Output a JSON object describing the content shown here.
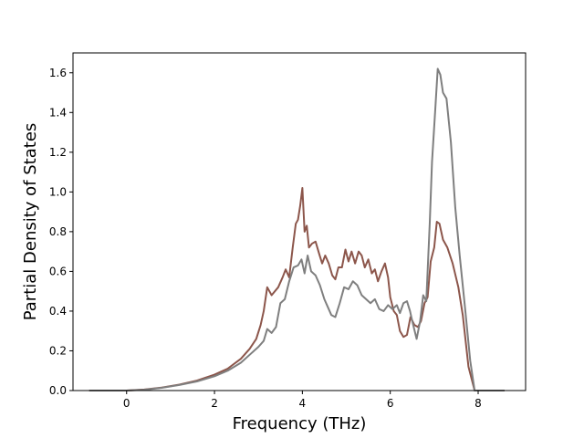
{
  "chart_data": {
    "type": "line",
    "title": "",
    "xlabel": "Frequency (THz)",
    "ylabel": "Partial Density of States",
    "xlim": [
      -1.22,
      9.08
    ],
    "ylim": [
      0.0,
      1.7
    ],
    "xticks": [
      0,
      2,
      4,
      6,
      8
    ],
    "yticks": [
      0.0,
      0.2,
      0.4,
      0.6,
      0.8,
      1.0,
      1.2,
      1.4,
      1.6
    ],
    "xtick_labels": [
      "0",
      "2",
      "4",
      "6",
      "8"
    ],
    "ytick_labels": [
      "0.0",
      "0.2",
      "0.4",
      "0.6",
      "0.8",
      "1.0",
      "1.2",
      "1.4",
      "1.6"
    ],
    "grid": false,
    "legend": false,
    "series": [
      {
        "color": "#8c564b",
        "points": [
          [
            -0.85,
            0.0
          ],
          [
            0.0,
            0.0
          ],
          [
            0.4,
            0.005
          ],
          [
            0.8,
            0.015
          ],
          [
            1.2,
            0.03
          ],
          [
            1.6,
            0.05
          ],
          [
            2.0,
            0.08
          ],
          [
            2.3,
            0.11
          ],
          [
            2.6,
            0.16
          ],
          [
            2.8,
            0.21
          ],
          [
            2.95,
            0.26
          ],
          [
            3.05,
            0.33
          ],
          [
            3.12,
            0.4
          ],
          [
            3.2,
            0.52
          ],
          [
            3.3,
            0.48
          ],
          [
            3.45,
            0.52
          ],
          [
            3.55,
            0.57
          ],
          [
            3.62,
            0.61
          ],
          [
            3.7,
            0.57
          ],
          [
            3.78,
            0.72
          ],
          [
            3.85,
            0.84
          ],
          [
            3.9,
            0.86
          ],
          [
            3.95,
            0.93
          ],
          [
            4.0,
            1.02
          ],
          [
            4.05,
            0.8
          ],
          [
            4.1,
            0.83
          ],
          [
            4.15,
            0.72
          ],
          [
            4.22,
            0.74
          ],
          [
            4.3,
            0.75
          ],
          [
            4.38,
            0.69
          ],
          [
            4.45,
            0.64
          ],
          [
            4.52,
            0.68
          ],
          [
            4.6,
            0.64
          ],
          [
            4.68,
            0.58
          ],
          [
            4.75,
            0.56
          ],
          [
            4.82,
            0.62
          ],
          [
            4.9,
            0.62
          ],
          [
            4.98,
            0.71
          ],
          [
            5.05,
            0.65
          ],
          [
            5.12,
            0.7
          ],
          [
            5.2,
            0.64
          ],
          [
            5.28,
            0.7
          ],
          [
            5.35,
            0.68
          ],
          [
            5.42,
            0.62
          ],
          [
            5.5,
            0.66
          ],
          [
            5.58,
            0.59
          ],
          [
            5.65,
            0.61
          ],
          [
            5.72,
            0.55
          ],
          [
            5.8,
            0.6
          ],
          [
            5.88,
            0.64
          ],
          [
            5.95,
            0.57
          ],
          [
            6.0,
            0.47
          ],
          [
            6.08,
            0.4
          ],
          [
            6.15,
            0.38
          ],
          [
            6.22,
            0.3
          ],
          [
            6.3,
            0.27
          ],
          [
            6.38,
            0.28
          ],
          [
            6.46,
            0.37
          ],
          [
            6.55,
            0.33
          ],
          [
            6.63,
            0.32
          ],
          [
            6.7,
            0.35
          ],
          [
            6.78,
            0.44
          ],
          [
            6.85,
            0.47
          ],
          [
            6.92,
            0.65
          ],
          [
            7.0,
            0.72
          ],
          [
            7.06,
            0.85
          ],
          [
            7.12,
            0.84
          ],
          [
            7.2,
            0.76
          ],
          [
            7.3,
            0.72
          ],
          [
            7.42,
            0.64
          ],
          [
            7.55,
            0.52
          ],
          [
            7.65,
            0.38
          ],
          [
            7.78,
            0.12
          ],
          [
            7.92,
            0.0
          ],
          [
            8.6,
            0.0
          ]
        ]
      },
      {
        "color": "#7f7f7f",
        "points": [
          [
            -0.85,
            0.0
          ],
          [
            0.0,
            0.0
          ],
          [
            0.4,
            0.004
          ],
          [
            0.8,
            0.014
          ],
          [
            1.2,
            0.028
          ],
          [
            1.6,
            0.046
          ],
          [
            2.0,
            0.072
          ],
          [
            2.3,
            0.1
          ],
          [
            2.6,
            0.14
          ],
          [
            2.8,
            0.18
          ],
          [
            3.0,
            0.22
          ],
          [
            3.12,
            0.25
          ],
          [
            3.2,
            0.31
          ],
          [
            3.3,
            0.29
          ],
          [
            3.4,
            0.32
          ],
          [
            3.5,
            0.44
          ],
          [
            3.6,
            0.46
          ],
          [
            3.7,
            0.55
          ],
          [
            3.8,
            0.62
          ],
          [
            3.9,
            0.63
          ],
          [
            3.98,
            0.66
          ],
          [
            4.05,
            0.59
          ],
          [
            4.12,
            0.68
          ],
          [
            4.2,
            0.6
          ],
          [
            4.3,
            0.58
          ],
          [
            4.4,
            0.53
          ],
          [
            4.5,
            0.46
          ],
          [
            4.58,
            0.42
          ],
          [
            4.66,
            0.38
          ],
          [
            4.75,
            0.37
          ],
          [
            4.85,
            0.44
          ],
          [
            4.95,
            0.52
          ],
          [
            5.05,
            0.51
          ],
          [
            5.15,
            0.55
          ],
          [
            5.25,
            0.53
          ],
          [
            5.35,
            0.48
          ],
          [
            5.45,
            0.46
          ],
          [
            5.55,
            0.44
          ],
          [
            5.65,
            0.46
          ],
          [
            5.75,
            0.41
          ],
          [
            5.85,
            0.4
          ],
          [
            5.95,
            0.43
          ],
          [
            6.05,
            0.41
          ],
          [
            6.15,
            0.43
          ],
          [
            6.22,
            0.39
          ],
          [
            6.3,
            0.44
          ],
          [
            6.38,
            0.45
          ],
          [
            6.45,
            0.4
          ],
          [
            6.5,
            0.35
          ],
          [
            6.6,
            0.26
          ],
          [
            6.68,
            0.35
          ],
          [
            6.75,
            0.48
          ],
          [
            6.82,
            0.45
          ],
          [
            6.9,
            0.85
          ],
          [
            6.95,
            1.15
          ],
          [
            7.02,
            1.4
          ],
          [
            7.08,
            1.62
          ],
          [
            7.14,
            1.59
          ],
          [
            7.2,
            1.5
          ],
          [
            7.28,
            1.47
          ],
          [
            7.38,
            1.25
          ],
          [
            7.48,
            0.92
          ],
          [
            7.58,
            0.68
          ],
          [
            7.7,
            0.42
          ],
          [
            7.82,
            0.15
          ],
          [
            7.92,
            0.0
          ],
          [
            8.6,
            0.0
          ]
        ]
      }
    ]
  }
}
